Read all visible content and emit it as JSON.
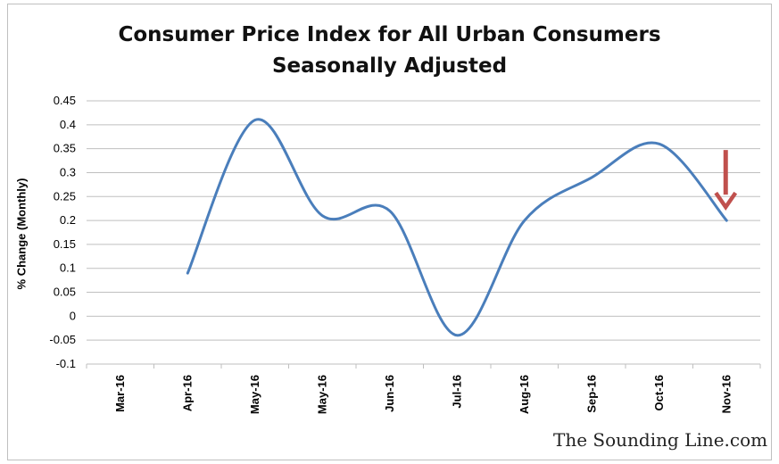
{
  "chart_data": {
    "type": "line",
    "title": "Consumer Price Index for All Urban Consumers",
    "subtitle": "Seasonally Adjusted",
    "xlabel": "",
    "ylabel": "% Change (Monthly)",
    "categories": [
      "Mar-16",
      "Apr-16",
      "May-16",
      "May-16",
      "Jun-16",
      "Jul-16",
      "Aug-16",
      "Sep-16",
      "Oct-16",
      "Nov-16"
    ],
    "series": [
      {
        "values": [
          null,
          0.09,
          0.41,
          0.21,
          0.22,
          -0.04,
          0.2,
          0.29,
          0.36,
          0.2
        ],
        "color": "#4a7ebb",
        "smooth": true
      }
    ],
    "ylim": [
      -0.1,
      0.45
    ],
    "yticks": [
      "0.45",
      "0.4",
      "0.35",
      "0.3",
      "0.25",
      "0.2",
      "0.15",
      "0.1",
      "0.05",
      "0",
      "-0.05",
      "-0.1"
    ],
    "grid": true,
    "annotations": [
      {
        "type": "arrow",
        "category_index": 9,
        "direction": "down",
        "color": "#c0504d"
      }
    ]
  },
  "watermark": "The Sounding Line.com"
}
